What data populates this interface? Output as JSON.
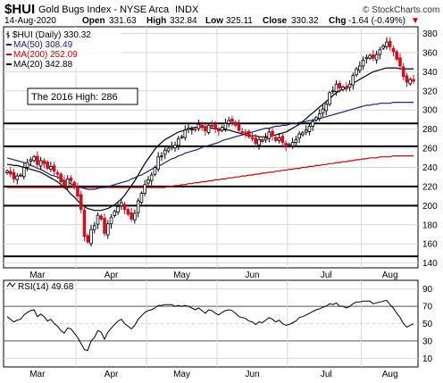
{
  "header": {
    "symbol": "$HUI",
    "name": "Gold Bugs Index - NYSE Arca",
    "exchange": "INDX",
    "brand": "© StockCharts.com",
    "date": "14-Aug-2020",
    "open_label": "Open",
    "open": "331.63",
    "high_label": "High",
    "high": "332.84",
    "low_label": "Low",
    "low": "325.11",
    "close_label": "Close",
    "close": "330.32",
    "chg_label": "Chg",
    "chg": "-1.64 (-0.49%)",
    "chg_arrow": "▼"
  },
  "legend": {
    "price": "$HUI (Daily) 330.32",
    "ma50": "MA(50) 308.49",
    "ma200": "MA(200) 252.09",
    "ma20": "MA(20) 342.88"
  },
  "annotation": "The 2016 High: 286",
  "rsi": {
    "label": "RSI(14) 49.68",
    "ticks": [
      "90",
      "70",
      "50",
      "30",
      "10"
    ]
  },
  "colors": {
    "up": "#000000",
    "down": "#cc1122",
    "ma50": "#1a237e",
    "ma200": "#cc0000",
    "ma20": "#000000",
    "rsi": "#000000",
    "grid": "#d9d9d9"
  },
  "chart_data": {
    "type": "candlestick",
    "title": "$HUI (Daily) 330.32",
    "x_months": [
      "Mar",
      "Apr",
      "May",
      "Jun",
      "Jul",
      "Aug"
    ],
    "y_ticks": [
      140,
      160,
      180,
      200,
      220,
      240,
      260,
      280,
      300,
      320,
      340,
      360,
      380
    ],
    "ylim": [
      135,
      387
    ],
    "horizontal_lines": [
      147,
      200,
      220,
      262,
      286
    ],
    "days": 122,
    "closes": [
      236,
      233,
      228,
      231,
      232,
      240,
      245,
      248,
      251,
      243,
      247,
      244,
      239,
      241,
      236,
      233,
      225,
      221,
      228,
      226,
      219,
      210,
      196,
      168,
      162,
      175,
      179,
      190,
      186,
      171,
      181,
      188,
      194,
      199,
      203,
      196,
      191,
      186,
      192,
      205,
      213,
      222,
      227,
      232,
      240,
      251,
      252,
      258,
      260,
      262,
      263,
      270,
      272,
      279,
      281,
      280,
      279,
      285,
      282,
      278,
      284,
      283,
      280,
      278,
      282,
      286,
      289,
      288,
      284,
      279,
      277,
      276,
      272,
      270,
      265,
      269,
      267,
      271,
      277,
      273,
      268,
      271,
      266,
      262,
      264,
      266,
      269,
      275,
      276,
      279,
      283,
      288,
      292,
      296,
      301,
      306,
      318,
      320,
      327,
      323,
      324,
      322,
      327,
      336,
      343,
      346,
      352,
      355,
      357,
      354,
      358,
      363,
      367,
      371,
      366,
      361,
      353,
      346,
      335,
      329,
      332,
      330
    ],
    "ma50": [
      250,
      249,
      248,
      247,
      246,
      245,
      244,
      242,
      241,
      239,
      238,
      236,
      234,
      232,
      231,
      230,
      228,
      226,
      225,
      223,
      221,
      220,
      219,
      218,
      217,
      217,
      217,
      218,
      219,
      219,
      220,
      221,
      222,
      223,
      224,
      225,
      226,
      228,
      229,
      231,
      232,
      234,
      236,
      238,
      240,
      241,
      243,
      245,
      247,
      249,
      250,
      252,
      253,
      255,
      256,
      257,
      258,
      259,
      261,
      262,
      263,
      264,
      265,
      266,
      268,
      269,
      270,
      271,
      272,
      273,
      274,
      275,
      276,
      277,
      278,
      279,
      280,
      281,
      281,
      282,
      283,
      283,
      284,
      284,
      285,
      286,
      286,
      287,
      287,
      288,
      289,
      289,
      290,
      291,
      292,
      293,
      294,
      295,
      296,
      297,
      298,
      299,
      300,
      301,
      302,
      303,
      304,
      305,
      305,
      306,
      306,
      307,
      307,
      307,
      307,
      308,
      308,
      308,
      308,
      308,
      308,
      308
    ],
    "ma200": [
      219,
      219,
      219,
      219,
      219,
      219,
      219,
      219,
      219,
      219,
      219,
      219,
      219,
      219,
      219,
      219,
      219,
      219,
      219,
      219,
      219,
      219,
      219,
      219,
      219,
      219,
      219,
      219,
      219,
      219,
      219,
      219,
      219,
      219,
      219,
      219,
      219,
      219,
      219,
      219,
      219,
      219,
      219,
      219,
      219,
      219,
      219,
      219,
      220,
      220,
      221,
      221,
      222,
      222,
      223,
      223,
      224,
      224,
      225,
      225,
      226,
      226,
      227,
      227,
      228,
      228,
      229,
      229,
      230,
      230,
      231,
      231,
      232,
      232,
      233,
      233,
      234,
      234,
      235,
      235,
      236,
      236,
      237,
      237,
      238,
      238,
      239,
      239,
      240,
      240,
      241,
      241,
      242,
      242,
      243,
      243,
      244,
      244,
      245,
      245,
      246,
      246,
      247,
      247,
      248,
      248,
      249,
      249,
      250,
      250,
      250,
      251,
      251,
      251,
      251,
      252,
      252,
      252,
      252,
      252,
      252,
      252
    ],
    "ma20": [
      243,
      243,
      242,
      242,
      241,
      240,
      239,
      238,
      237,
      236,
      235,
      233,
      231,
      229,
      227,
      225,
      222,
      219,
      216,
      212,
      209,
      205,
      202,
      199,
      197,
      196,
      195,
      195,
      195,
      196,
      197,
      199,
      201,
      204,
      207,
      211,
      216,
      221,
      226,
      232,
      238,
      244,
      249,
      254,
      259,
      263,
      266,
      269,
      271,
      273,
      275,
      277,
      278,
      279,
      280,
      281,
      282,
      282,
      282,
      282,
      282,
      281,
      281,
      280,
      280,
      279,
      279,
      278,
      277,
      276,
      275,
      274,
      273,
      273,
      273,
      272,
      272,
      272,
      272,
      273,
      274,
      275,
      276,
      277,
      279,
      281,
      283,
      285,
      288,
      291,
      294,
      297,
      300,
      303,
      306,
      309,
      312,
      315,
      318,
      320,
      322,
      324,
      326,
      328,
      330,
      332,
      334,
      336,
      338,
      340,
      341,
      342,
      343,
      344,
      344,
      344,
      344,
      343,
      343,
      343,
      343,
      343
    ],
    "rsi_values": [
      58,
      55,
      52,
      54,
      55,
      60,
      63,
      65,
      66,
      58,
      61,
      58,
      53,
      55,
      50,
      47,
      42,
      39,
      45,
      44,
      39,
      34,
      27,
      20,
      19,
      30,
      34,
      42,
      40,
      32,
      40,
      45,
      49,
      53,
      55,
      50,
      47,
      44,
      48,
      55,
      59,
      63,
      65,
      66,
      68,
      71,
      71,
      72,
      72,
      72,
      70,
      71,
      70,
      71,
      70,
      68,
      66,
      68,
      65,
      62,
      66,
      65,
      62,
      60,
      63,
      65,
      66,
      65,
      62,
      58,
      57,
      56,
      53,
      52,
      49,
      52,
      51,
      54,
      57,
      55,
      52,
      54,
      50,
      48,
      49,
      51,
      53,
      57,
      58,
      60,
      62,
      64,
      66,
      67,
      69,
      70,
      73,
      72,
      74,
      70,
      70,
      68,
      70,
      73,
      75,
      75,
      76,
      76,
      76,
      73,
      74,
      75,
      76,
      77,
      72,
      68,
      62,
      57,
      50,
      46,
      48,
      49.68
    ],
    "rsi_ylim": [
      0,
      100
    ],
    "rsi_ticks": [
      10,
      30,
      50,
      70,
      90
    ]
  }
}
